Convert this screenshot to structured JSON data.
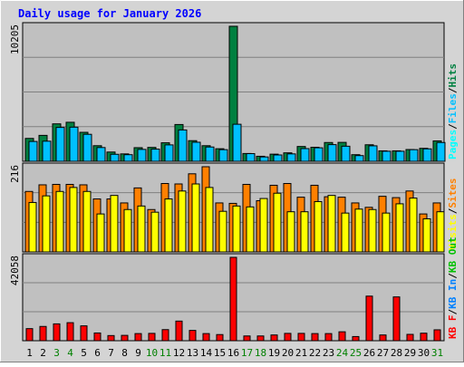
{
  "chart_data": [
    {
      "type": "bar",
      "title": "Daily usage for January 2026",
      "ymax_label": "10205",
      "legend": [
        "Pages",
        "/",
        "Files",
        "/",
        "Hits"
      ],
      "categories": [
        "1",
        "2",
        "3",
        "4",
        "5",
        "6",
        "7",
        "8",
        "9",
        "10",
        "11",
        "12",
        "13",
        "14",
        "15",
        "16",
        "17",
        "18",
        "19",
        "20",
        "21",
        "22",
        "23",
        "24",
        "25",
        "26",
        "27",
        "28",
        "29",
        "30",
        "31"
      ],
      "weekend_days": [
        "3",
        "4",
        "10",
        "11",
        "17",
        "18",
        "24",
        "25",
        "31"
      ],
      "series": [
        {
          "name": "Hits",
          "values": [
            1730,
            1960,
            2830,
            2950,
            2190,
            1180,
            700,
            560,
            1030,
            1050,
            1400,
            2780,
            1560,
            1180,
            950,
            10205,
            590,
            380,
            540,
            640,
            1120,
            1060,
            1420,
            1430,
            500,
            1250,
            790,
            790,
            890,
            980,
            1540
          ]
        },
        {
          "name": "Files",
          "values": [
            1500,
            1520,
            2560,
            2580,
            2040,
            1040,
            530,
            500,
            900,
            920,
            1240,
            2370,
            1440,
            1080,
            880,
            2800,
            580,
            330,
            480,
            560,
            960,
            1020,
            1260,
            1140,
            430,
            1170,
            760,
            760,
            880,
            940,
            1420
          ]
        },
        {
          "name": "Pages",
          "values": [
            0,
            0,
            0,
            0,
            0,
            0,
            0,
            0,
            0,
            0,
            0,
            0,
            0,
            0,
            0,
            0,
            0,
            0,
            0,
            0,
            0,
            0,
            0,
            0,
            0,
            0,
            0,
            0,
            0,
            0,
            0
          ]
        }
      ]
    },
    {
      "type": "bar",
      "ymax_label": "216",
      "legend": [
        "Visits",
        "/",
        "Sites"
      ],
      "categories": [
        "1",
        "2",
        "3",
        "4",
        "5",
        "6",
        "7",
        "8",
        "9",
        "10",
        "11",
        "12",
        "13",
        "14",
        "15",
        "16",
        "17",
        "18",
        "19",
        "20",
        "21",
        "22",
        "23",
        "24",
        "25",
        "26",
        "27",
        "28",
        "29",
        "30",
        "31"
      ],
      "series": [
        {
          "name": "Sites",
          "values": [
            137,
            152,
            153,
            153,
            152,
            120,
            120,
            111,
            145,
            96,
            155,
            154,
            177,
            193,
            111,
            110,
            153,
            116,
            151,
            155,
            124,
            151,
            125,
            124,
            111,
            101,
            126,
            123,
            138,
            86,
            111
          ]
        },
        {
          "name": "Visits",
          "values": [
            112,
            127,
            137,
            146,
            137,
            86,
            128,
            96,
            104,
            90,
            120,
            138,
            154,
            146,
            92,
            104,
            102,
            121,
            133,
            91,
            91,
            114,
            128,
            88,
            97,
            96,
            88,
            109,
            122,
            75,
            91
          ]
        }
      ]
    },
    {
      "type": "bar",
      "ymax_label": "42058",
      "legend": [
        "KB F",
        "/",
        "KB In",
        "/",
        "KB Out"
      ],
      "categories": [
        "1",
        "2",
        "3",
        "4",
        "5",
        "6",
        "7",
        "8",
        "9",
        "10",
        "11",
        "12",
        "13",
        "14",
        "15",
        "16",
        "17",
        "18",
        "19",
        "20",
        "21",
        "22",
        "23",
        "24",
        "25",
        "26",
        "27",
        "28",
        "29",
        "30",
        "31"
      ],
      "series": [
        {
          "name": "KB F",
          "values": [
            6100,
            7200,
            8500,
            9100,
            7500,
            3900,
            2600,
            2700,
            3600,
            3700,
            5600,
            9900,
            5200,
            3600,
            3100,
            42058,
            2400,
            2400,
            2900,
            3700,
            3700,
            3600,
            3600,
            4500,
            2100,
            22500,
            2900,
            22100,
            3200,
            3800,
            5500
          ]
        }
      ]
    }
  ],
  "colors": {
    "hits": "#008040",
    "files": "#00c0ff",
    "pages": "#00ffff",
    "visits": "#ffff00",
    "sites": "#ff8000",
    "kbf": "#ff0000",
    "kbin": "#0080ff",
    "kbout": "#00c000",
    "title": "#0000ff",
    "weekend_label": "#008000",
    "plot_bg": "#c0c0c0",
    "frame_bg": "#d4d4d4"
  }
}
